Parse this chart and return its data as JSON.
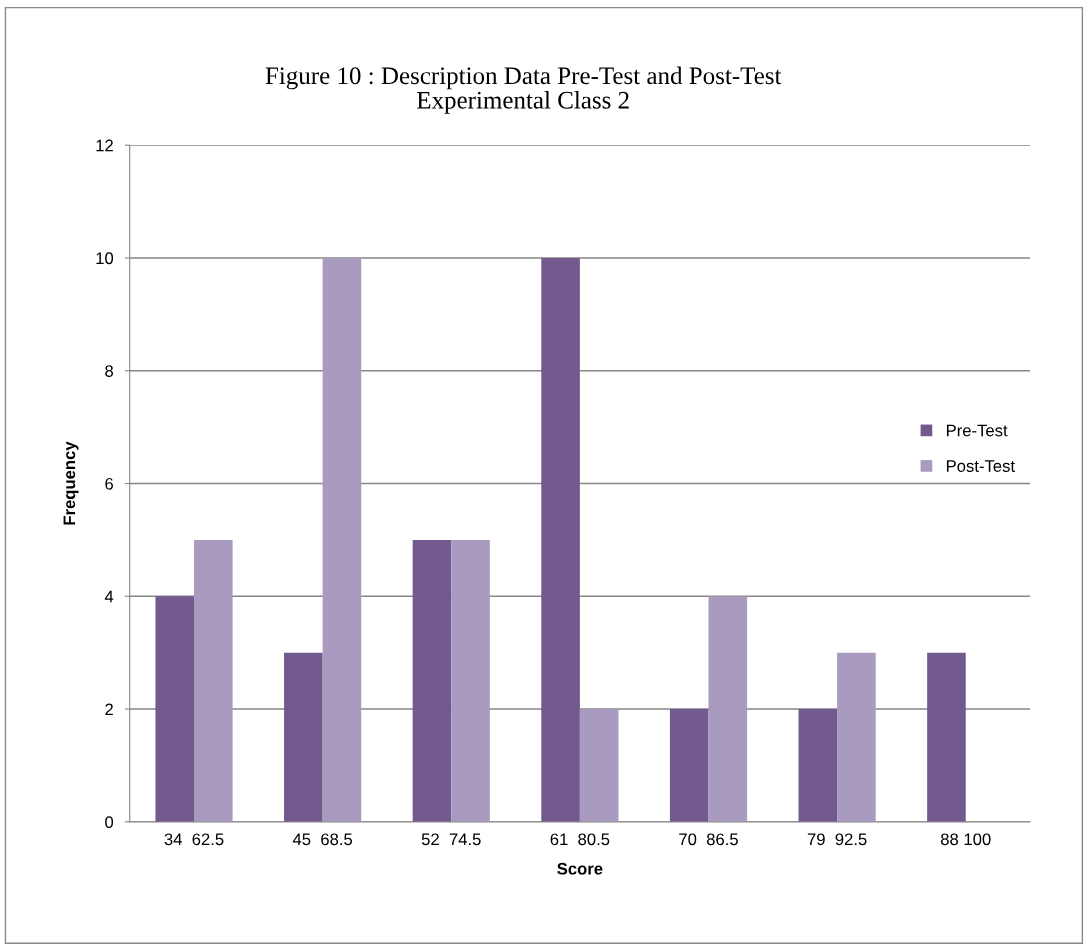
{
  "chart_data": {
    "type": "bar",
    "title": "Figure 10 : Description Data Pre-Test and Post-Test\nExperimental Class 2",
    "xlabel": "Score",
    "ylabel": "Frequency",
    "categories": [
      "34  62.5",
      "45  68.5",
      "52  74.5",
      "61  80.5",
      "70  86.5",
      "79  92.5",
      "88 100"
    ],
    "series": [
      {
        "name": "Pre-Test",
        "color": "#725a8f",
        "values": [
          4,
          3,
          5,
          10,
          2,
          2,
          3
        ]
      },
      {
        "name": "Post-Test",
        "color": "#a99bbf",
        "values": [
          5,
          10,
          5,
          2,
          4,
          3,
          0
        ]
      }
    ],
    "ylim": [
      0,
      12
    ],
    "yticks": [
      0,
      2,
      4,
      6,
      8,
      10,
      12
    ],
    "grid": "y",
    "legend": "right"
  }
}
